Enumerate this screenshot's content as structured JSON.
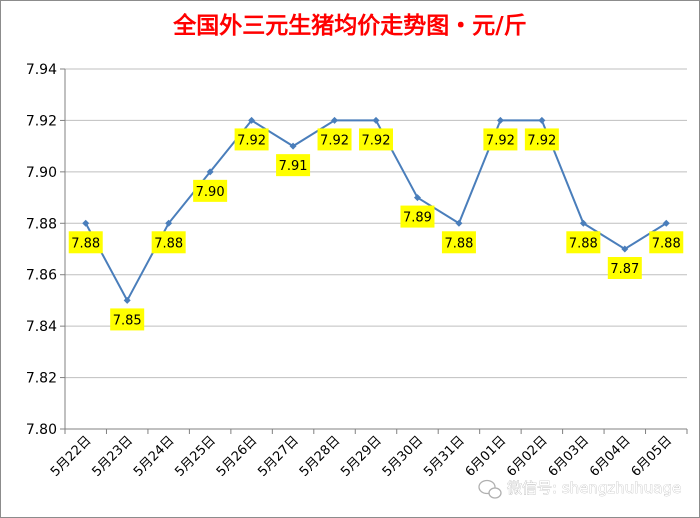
{
  "chart_data": {
    "type": "line",
    "title": "全国外三元生猪均价走势图・元/斤",
    "xlabel": "",
    "ylabel": "",
    "ylim": [
      7.8,
      7.94
    ],
    "yticks": [
      "7.80",
      "7.82",
      "7.84",
      "7.86",
      "7.88",
      "7.90",
      "7.92",
      "7.94"
    ],
    "grid": true,
    "legend": "none",
    "categories": [
      "5月22日",
      "5月23日",
      "5月24日",
      "5月25日",
      "5月26日",
      "5月27日",
      "5月28日",
      "5月29日",
      "5月30日",
      "5月31日",
      "6月01日",
      "6月02日",
      "6月03日",
      "6月04日",
      "6月05日"
    ],
    "series": [
      {
        "values": [
          7.88,
          7.85,
          7.88,
          7.9,
          7.92,
          7.91,
          7.92,
          7.92,
          7.89,
          7.88,
          7.92,
          7.92,
          7.88,
          7.87,
          7.88
        ],
        "color": "#4a7ebb"
      }
    ],
    "data_labels": [
      "7.88",
      "7.85",
      "7.88",
      "7.90",
      "7.92",
      "7.91",
      "7.92",
      "7.92",
      "7.89",
      "7.88",
      "7.92",
      "7.92",
      "7.88",
      "7.87",
      "7.88"
    ],
    "label_style": {
      "background": "#ffff00",
      "text_color": "#000000"
    }
  },
  "watermark": {
    "text": "微信号: shengzhuhuage",
    "icon": "wechat-icon"
  },
  "colors": {
    "title": "#ff0000",
    "line": "#4a7ebb",
    "grid": "#bfbfbf",
    "axis": "#808080",
    "label_bg": "#ffff00"
  }
}
